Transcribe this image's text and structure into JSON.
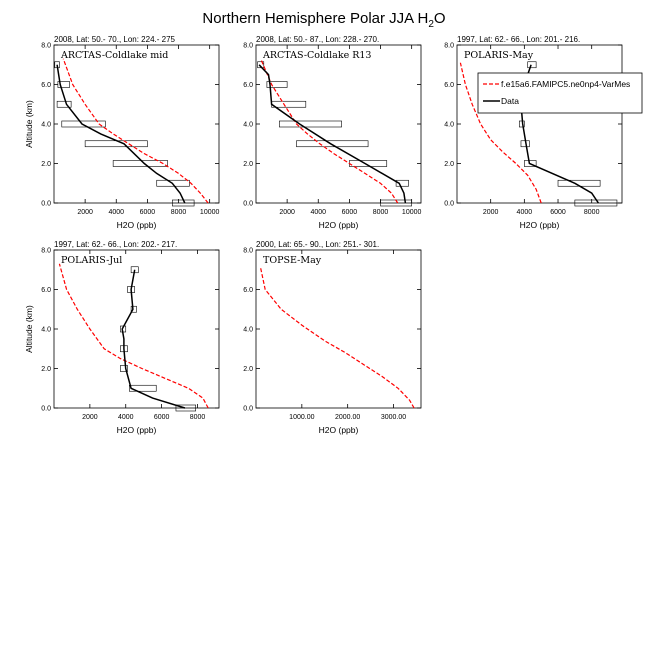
{
  "figure": {
    "title_main": "Northern Hemisphere Polar JJA H",
    "title_sub": "2",
    "title_end": "O"
  },
  "legend": {
    "model_label": "f.e15a6.FAMIPC5.ne0np4-VarMes",
    "data_label": "Data",
    "model_color": "#ff0000",
    "data_color": "#000000"
  },
  "chart_data": [
    {
      "type": "line",
      "header": "2008, Lat:  50.- 70., Lon: 224.- 275",
      "campaign": "ARCTAS-Coldlake mid",
      "xlabel": "H2O (ppb)",
      "ylabel": "Altitude (km)",
      "xlim": [
        0,
        10600
      ],
      "ylim": [
        0,
        8
      ],
      "xticks": [
        2000,
        4000,
        6000,
        8000,
        10000
      ],
      "xtick_labels": [
        "2000",
        "4000",
        "6000",
        "8000",
        "10000"
      ],
      "yticks": [
        0,
        2,
        4,
        6,
        8
      ],
      "ytick_labels": [
        "0.0",
        "2.0",
        "4.0",
        "6.0",
        "8.0"
      ],
      "model": {
        "x": [
          9900,
          9400,
          8800,
          8000,
          7000,
          5800,
          4800,
          3800,
          2900,
          2000,
          1200,
          600
        ],
        "y": [
          0,
          0.5,
          1,
          1.5,
          2,
          2.5,
          3,
          3.5,
          4,
          5,
          6,
          7.3
        ]
      },
      "obs": {
        "x": [
          8400,
          8100,
          7600,
          6600,
          5800,
          4500,
          3000,
          1800,
          800,
          400,
          200
        ],
        "y": [
          0,
          0.5,
          1,
          1.5,
          2,
          3,
          3.5,
          4,
          5,
          6,
          7
        ],
        "box_y": [
          0,
          1,
          2,
          3,
          4,
          5,
          6,
          7
        ],
        "box_min": [
          7600,
          6600,
          3800,
          2000,
          500,
          200,
          250,
          50
        ],
        "box_max": [
          9000,
          8700,
          7300,
          6000,
          3300,
          1100,
          1000,
          350
        ]
      }
    },
    {
      "type": "line",
      "header": "2008, Lat:  50.- 87., Lon: 228.- 270.",
      "campaign": "ARCTAS-Coldlake R13",
      "xlabel": "H2O (ppb)",
      "ylabel": "",
      "xlim": [
        0,
        10600
      ],
      "ylim": [
        0,
        8
      ],
      "xticks": [
        2000,
        4000,
        6000,
        8000,
        10000
      ],
      "xtick_labels": [
        "2000",
        "4000",
        "6000",
        "8000",
        "10000"
      ],
      "yticks": [
        0,
        2,
        4,
        6,
        8
      ],
      "ytick_labels": [
        "0.0",
        "2.0",
        "4.0",
        "6.0",
        "8.0"
      ],
      "model": {
        "x": [
          9100,
          8700,
          8000,
          7000,
          6000,
          5000,
          4100,
          3300,
          2600,
          1800,
          1000,
          300
        ],
        "y": [
          0,
          0.5,
          1,
          1.5,
          2,
          2.5,
          3,
          3.5,
          4,
          5,
          6,
          7.3
        ]
      },
      "obs": {
        "x": [
          9600,
          9500,
          9200,
          7000,
          4800,
          2800,
          1000,
          900,
          800,
          200
        ],
        "y": [
          0,
          0.5,
          1,
          2,
          3,
          4,
          5,
          6,
          6.5,
          7
        ],
        "box_y": [
          0,
          1,
          2,
          3,
          4,
          5,
          6,
          7
        ],
        "box_min": [
          8000,
          9000,
          6000,
          2600,
          1500,
          1000,
          700,
          100
        ],
        "box_max": [
          10000,
          9800,
          8400,
          7200,
          5500,
          3200,
          2000,
          500
        ]
      }
    },
    {
      "type": "line",
      "header": "1997, Lat: 62.- 66., Lon: 201.- 216.",
      "campaign": "POLARIS-May",
      "xlabel": "H2O (ppb)",
      "ylabel": "",
      "xlim": [
        0,
        9800
      ],
      "ylim": [
        0,
        8
      ],
      "xticks": [
        2000,
        4000,
        6000,
        8000
      ],
      "xtick_labels": [
        "2000",
        "4000",
        "6000",
        "8000"
      ],
      "yticks": [
        0,
        2,
        4,
        6,
        8
      ],
      "ytick_labels": [
        "0.0",
        "2.0",
        "4.0",
        "6.0",
        "8.0"
      ],
      "model": {
        "x": [
          5000,
          4700,
          4200,
          3500,
          2700,
          2000,
          1400,
          900,
          500,
          200
        ],
        "y": [
          0,
          0.7,
          1.4,
          2,
          2.6,
          3.2,
          4,
          5,
          6,
          7.1
        ]
      },
      "obs": {
        "x": [
          8400,
          8000,
          7000,
          4300,
          4100,
          3900,
          3800,
          4000,
          4200,
          4400
        ],
        "y": [
          0,
          0.5,
          1,
          2,
          3,
          4,
          5,
          5.5,
          6.5,
          7
        ],
        "box_y": [
          0,
          1,
          2,
          3,
          4,
          7
        ],
        "box_min": [
          7000,
          6000,
          4000,
          3800,
          3700,
          4200
        ],
        "box_max": [
          9500,
          8500,
          4700,
          4300,
          4000,
          4700
        ]
      }
    },
    {
      "type": "line",
      "header": "1997, Lat: 62.- 66., Lon: 202.- 217.",
      "campaign": "POLARIS-Jul",
      "xlabel": "H2O (ppb)",
      "ylabel": "Altitude (km)",
      "xlim": [
        0,
        9200
      ],
      "ylim": [
        0,
        8
      ],
      "xticks": [
        2000,
        4000,
        6000,
        8000
      ],
      "xtick_labels": [
        "2000",
        "4000",
        "6000",
        "8000"
      ],
      "yticks": [
        0,
        2,
        4,
        6,
        8
      ],
      "ytick_labels": [
        "0.0",
        "2.0",
        "4.0",
        "6.0",
        "8.0"
      ],
      "model": {
        "x": [
          8600,
          8300,
          7500,
          6200,
          4900,
          3700,
          2800,
          2000,
          1300,
          700,
          300
        ],
        "y": [
          0,
          0.5,
          1,
          1.5,
          2,
          2.5,
          3,
          4,
          5,
          6,
          7.3
        ]
      },
      "obs": {
        "x": [
          7300,
          5500,
          4300,
          4000,
          3900,
          3900,
          3800,
          4400,
          4300,
          4500
        ],
        "y": [
          0,
          0.5,
          1,
          2,
          3,
          3.5,
          4,
          5,
          6,
          7
        ],
        "box_y": [
          0,
          1,
          2,
          3,
          4,
          5,
          6,
          7
        ],
        "box_min": [
          6800,
          4200,
          3700,
          3700,
          3700,
          4300,
          4100,
          4300
        ],
        "box_max": [
          7900,
          5700,
          4100,
          4100,
          4000,
          4600,
          4500,
          4700
        ]
      }
    },
    {
      "type": "line",
      "header": "2000, Lat: 65.- 90., Lon: 251.- 301.",
      "campaign": "TOPSE-May",
      "xlabel": "H2O (ppb)",
      "ylabel": "",
      "xlim": [
        0,
        3600
      ],
      "ylim": [
        0,
        8
      ],
      "xticks": [
        1000,
        2000,
        3000
      ],
      "xtick_labels": [
        "1000.00",
        "2000.00",
        "3000.00"
      ],
      "yticks": [
        0,
        2,
        4,
        6,
        8
      ],
      "ytick_labels": [
        "0.0",
        "2.0",
        "4.0",
        "6.0",
        "8.0"
      ],
      "model": {
        "x": [
          3450,
          3350,
          3100,
          2750,
          2350,
          1950,
          1500,
          1000,
          550,
          200,
          100
        ],
        "y": [
          0,
          0.4,
          1,
          1.6,
          2.2,
          2.8,
          3.4,
          4.2,
          5,
          6,
          7.1
        ]
      },
      "obs": {
        "x": [],
        "y": [],
        "box_y": [],
        "box_min": [],
        "box_max": []
      }
    }
  ]
}
